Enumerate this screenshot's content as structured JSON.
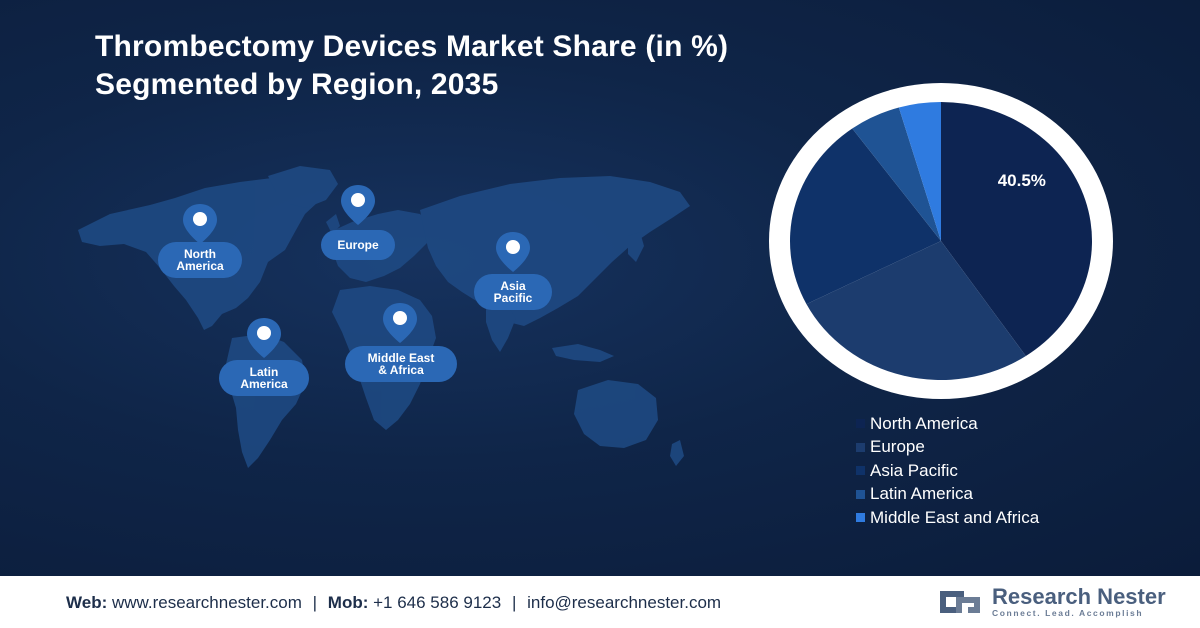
{
  "title": {
    "line1": "Thrombectomy Devices Market Share (in %)",
    "line2": "Segmented by Region, 2035"
  },
  "map": {
    "regions": [
      {
        "id": "north-america",
        "label_lines": [
          "North",
          "America"
        ]
      },
      {
        "id": "europe",
        "label_lines": [
          "Europe"
        ]
      },
      {
        "id": "asia-pacific",
        "label_lines": [
          "Asia",
          "Pacific"
        ]
      },
      {
        "id": "latin-america",
        "label_lines": [
          "Latin",
          "America"
        ]
      },
      {
        "id": "middle-east-africa",
        "label_lines": [
          "Middle East",
          "& Africa"
        ]
      }
    ],
    "pin_icon": "location-pin-icon"
  },
  "chart_data": {
    "type": "pie",
    "title": "Thrombectomy Devices Market Share (in %) Segmented by Region, 2035",
    "categories": [
      "North America",
      "Europe",
      "Asia Pacific",
      "Latin America",
      "Middle East and Africa"
    ],
    "values": [
      40.5,
      27.0,
      22.5,
      5.5,
      4.5
    ],
    "colors": [
      "#0d2452",
      "#1c3c6e",
      "#0f3269",
      "#1f5394",
      "#2f7be0"
    ],
    "data_labels": [
      "40.5%",
      "",
      "",
      "",
      ""
    ],
    "legend_placement": "bottom-right"
  },
  "footer": {
    "web_label": "Web:",
    "web_value": "www.researchnester.com",
    "mob_label": "Mob:",
    "mob_value": "+1 646 586 9123",
    "email_value": "info@researchnester.com",
    "separator": "|"
  },
  "logo": {
    "name": "Research Nester",
    "tagline": "Connect. Lead. Accomplish",
    "icon": "research-nester-logo-icon"
  }
}
